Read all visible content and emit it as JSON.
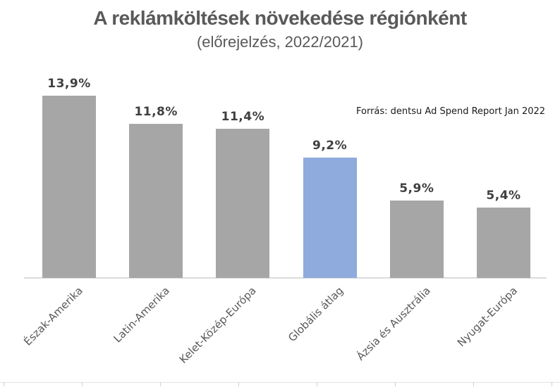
{
  "title": "A reklámköltések növekedése régiónként",
  "subtitle": "(előrejelzés, 2022/2021)",
  "source_note": "Forrás: dentsu Ad Spend Report Jan 2022",
  "colors": {
    "background": "#ffffff",
    "bar_default": "#a6a6a6",
    "bar_highlight": "#8faadc",
    "title_text": "#595959",
    "subtitle_text": "#595959",
    "value_label_text": "#3f3f3f",
    "category_label_text": "#595959",
    "axis_line": "#dcdcdc",
    "source_text": "#1a1a1a"
  },
  "chart_data": {
    "type": "bar",
    "title": "A reklámköltések növekedése régiónként",
    "subtitle": "(előrejelzés, 2022/2021)",
    "categories": [
      "Észak-Amerika",
      "Latin-Amerika",
      "Kelet-Közép-Európa",
      "Globális átlag",
      "Ázsia és Ausztrália",
      "Nyugat-Európa"
    ],
    "values": [
      13.9,
      11.8,
      11.4,
      9.2,
      5.9,
      5.4
    ],
    "value_labels": [
      "13,9%",
      "11,8%",
      "11,4%",
      "9,2%",
      "5,9%",
      "5,4%"
    ],
    "highlight_index": 3,
    "highlighted_category": "Globális átlag",
    "xlabel": "",
    "ylabel": "",
    "ylim": [
      0,
      15
    ],
    "grid": false,
    "legend": false,
    "value_label_format": "percent with comma decimal separator",
    "category_label_rotation_deg": 45,
    "annotation": "Forrás: dentsu Ad Spend Report Jan 2022"
  }
}
